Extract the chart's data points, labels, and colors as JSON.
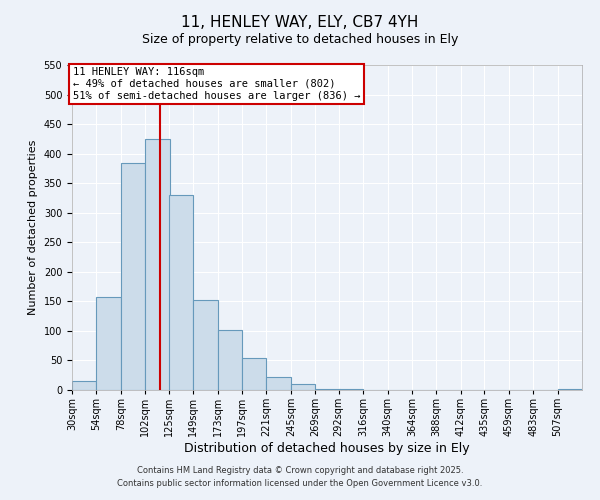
{
  "title": "11, HENLEY WAY, ELY, CB7 4YH",
  "subtitle": "Size of property relative to detached houses in Ely",
  "xlabel": "Distribution of detached houses by size in Ely",
  "ylabel": "Number of detached properties",
  "bar_labels": [
    "30sqm",
    "54sqm",
    "78sqm",
    "102sqm",
    "125sqm",
    "149sqm",
    "173sqm",
    "197sqm",
    "221sqm",
    "245sqm",
    "269sqm",
    "292sqm",
    "316sqm",
    "340sqm",
    "364sqm",
    "388sqm",
    "412sqm",
    "435sqm",
    "459sqm",
    "483sqm",
    "507sqm"
  ],
  "bar_values": [
    15,
    158,
    385,
    425,
    330,
    153,
    102,
    55,
    22,
    10,
    2,
    1,
    0,
    0,
    0,
    0,
    0,
    0,
    0,
    0,
    2
  ],
  "bar_color": "#ccdcea",
  "bar_edge_color": "#6699bb",
  "ylim": [
    0,
    550
  ],
  "yticks": [
    0,
    50,
    100,
    150,
    200,
    250,
    300,
    350,
    400,
    450,
    500,
    550
  ],
  "property_line_x": 116,
  "property_line_label": "11 HENLEY WAY: 116sqm",
  "annotation_line1": "← 49% of detached houses are smaller (802)",
  "annotation_line2": "51% of semi-detached houses are larger (836) →",
  "box_facecolor": "#ffffff",
  "box_edgecolor": "#cc0000",
  "line_color": "#cc0000",
  "footer1": "Contains HM Land Registry data © Crown copyright and database right 2025.",
  "footer2": "Contains public sector information licensed under the Open Government Licence v3.0.",
  "bg_color": "#edf2f9",
  "grid_color": "#ffffff",
  "bin_width": 24,
  "title_fontsize": 11,
  "subtitle_fontsize": 9,
  "xlabel_fontsize": 9,
  "ylabel_fontsize": 8,
  "tick_fontsize": 7,
  "annotation_fontsize": 7.5,
  "footer_fontsize": 6
}
